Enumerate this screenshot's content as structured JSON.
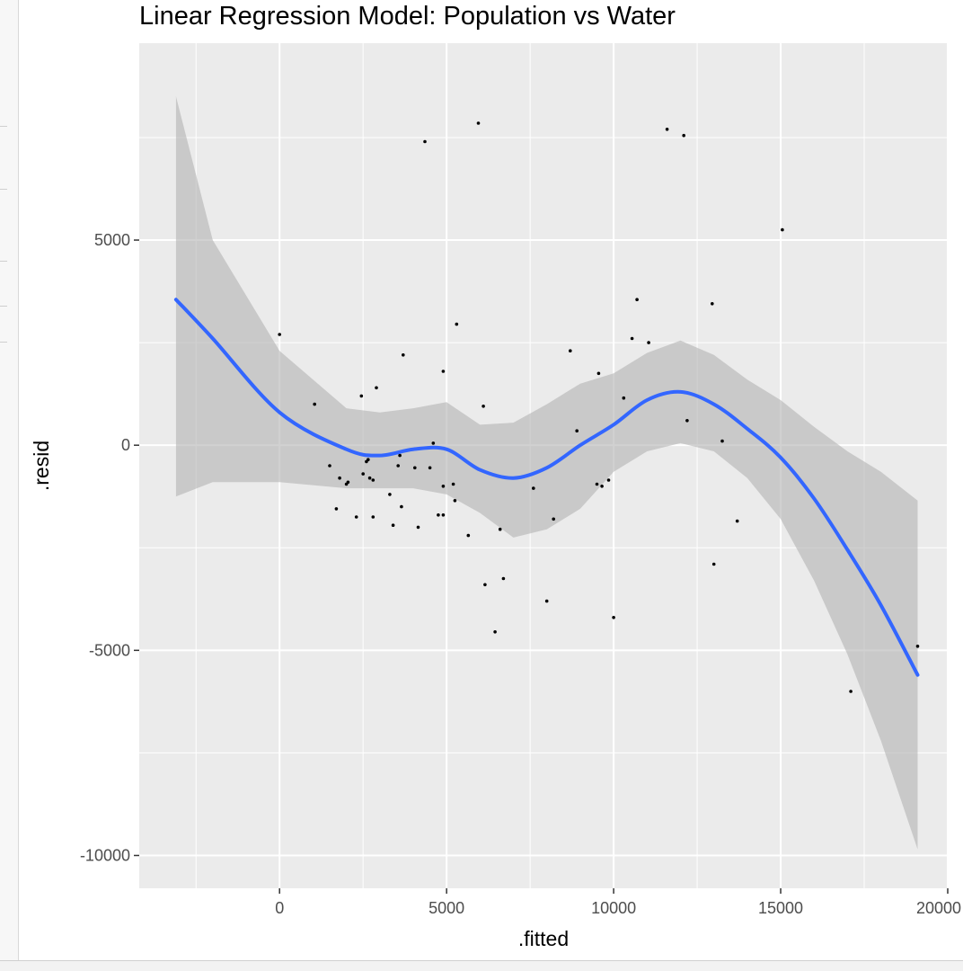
{
  "chart_data": {
    "type": "scatter",
    "title": "Linear Regression Model: Population vs Water",
    "xlabel": ".fitted",
    "ylabel": ".resid",
    "xlim": [
      -4200,
      20000
    ],
    "ylim": [
      -10800,
      9800
    ],
    "x_ticks": [
      0,
      5000,
      10000,
      15000,
      20000
    ],
    "x_tick_labels": [
      "0",
      "5000",
      "10000",
      "15000",
      "20000"
    ],
    "y_ticks": [
      -10000,
      -5000,
      0,
      5000
    ],
    "y_tick_labels": [
      "-10000",
      "-5000",
      "0",
      "5000"
    ],
    "grid": true,
    "colors": {
      "panel": "#ebebeb",
      "grid": "#ffffff",
      "points": "#000000",
      "smooth_line": "#3366ff",
      "ribbon": "#b3b3b3"
    },
    "points": [
      {
        "x": 0,
        "y": 2700
      },
      {
        "x": 1050,
        "y": 1000
      },
      {
        "x": 1500,
        "y": -500
      },
      {
        "x": 1700,
        "y": -1550
      },
      {
        "x": 1800,
        "y": -800
      },
      {
        "x": 2000,
        "y": -950
      },
      {
        "x": 2050,
        "y": -900
      },
      {
        "x": 2300,
        "y": -1750
      },
      {
        "x": 2450,
        "y": 1200
      },
      {
        "x": 2500,
        "y": -700
      },
      {
        "x": 2600,
        "y": -400
      },
      {
        "x": 2650,
        "y": -350
      },
      {
        "x": 2700,
        "y": -800
      },
      {
        "x": 2800,
        "y": -850
      },
      {
        "x": 2800,
        "y": -1750
      },
      {
        "x": 2900,
        "y": 1400
      },
      {
        "x": 3300,
        "y": -1200
      },
      {
        "x": 3400,
        "y": -1950
      },
      {
        "x": 3550,
        "y": -500
      },
      {
        "x": 3600,
        "y": -250
      },
      {
        "x": 3650,
        "y": -1500
      },
      {
        "x": 3700,
        "y": 2200
      },
      {
        "x": 4050,
        "y": -550
      },
      {
        "x": 4150,
        "y": -2000
      },
      {
        "x": 4350,
        "y": 7400
      },
      {
        "x": 4500,
        "y": -550
      },
      {
        "x": 4600,
        "y": 50
      },
      {
        "x": 4750,
        "y": -1700
      },
      {
        "x": 4900,
        "y": 1800
      },
      {
        "x": 4900,
        "y": -1000
      },
      {
        "x": 4900,
        "y": -1700
      },
      {
        "x": 5200,
        "y": -950
      },
      {
        "x": 5250,
        "y": -1350
      },
      {
        "x": 5300,
        "y": 2950
      },
      {
        "x": 5650,
        "y": -2200
      },
      {
        "x": 5950,
        "y": 7850
      },
      {
        "x": 6100,
        "y": 950
      },
      {
        "x": 6150,
        "y": -3400
      },
      {
        "x": 6450,
        "y": -4550
      },
      {
        "x": 6600,
        "y": -2050
      },
      {
        "x": 6700,
        "y": -3250
      },
      {
        "x": 7600,
        "y": -1050
      },
      {
        "x": 8000,
        "y": -3800
      },
      {
        "x": 8200,
        "y": -1800
      },
      {
        "x": 8700,
        "y": 2300
      },
      {
        "x": 8900,
        "y": 350
      },
      {
        "x": 9500,
        "y": -950
      },
      {
        "x": 9550,
        "y": 1750
      },
      {
        "x": 9650,
        "y": -1000
      },
      {
        "x": 9850,
        "y": -850
      },
      {
        "x": 10000,
        "y": -4200
      },
      {
        "x": 10300,
        "y": 1150
      },
      {
        "x": 10550,
        "y": 2600
      },
      {
        "x": 10700,
        "y": 3550
      },
      {
        "x": 11050,
        "y": 2500
      },
      {
        "x": 11600,
        "y": 7700
      },
      {
        "x": 12100,
        "y": 7550
      },
      {
        "x": 12200,
        "y": 600
      },
      {
        "x": 12950,
        "y": 3450
      },
      {
        "x": 13000,
        "y": -2900
      },
      {
        "x": 13250,
        "y": 100
      },
      {
        "x": 13700,
        "y": -1850
      },
      {
        "x": 15050,
        "y": 5250
      },
      {
        "x": 17100,
        "y": -6000
      },
      {
        "x": 19100,
        "y": -4900
      }
    ],
    "smooth": {
      "x": [
        -3100,
        -2000,
        0,
        2000,
        3000,
        4000,
        5000,
        6000,
        7000,
        8000,
        9000,
        10000,
        11000,
        12000,
        13000,
        14000,
        15000,
        16000,
        17000,
        18000,
        19100
      ],
      "y": [
        3550,
        2600,
        800,
        -100,
        -250,
        -100,
        -100,
        -600,
        -800,
        -550,
        0,
        500,
        1100,
        1300,
        1000,
        400,
        -300,
        -1300,
        -2550,
        -3900,
        -5600
      ],
      "upper": [
        8500,
        5000,
        2300,
        900,
        800,
        900,
        1050,
        500,
        550,
        1000,
        1500,
        1750,
        2250,
        2550,
        2200,
        1600,
        1100,
        450,
        -150,
        -650,
        -1350
      ],
      "lower": [
        -1250,
        -900,
        -900,
        -1050,
        -1050,
        -1050,
        -1200,
        -1650,
        -2250,
        -2050,
        -1550,
        -650,
        -150,
        50,
        -150,
        -800,
        -1800,
        -3300,
        -5100,
        -7200,
        -9850
      ]
    }
  }
}
